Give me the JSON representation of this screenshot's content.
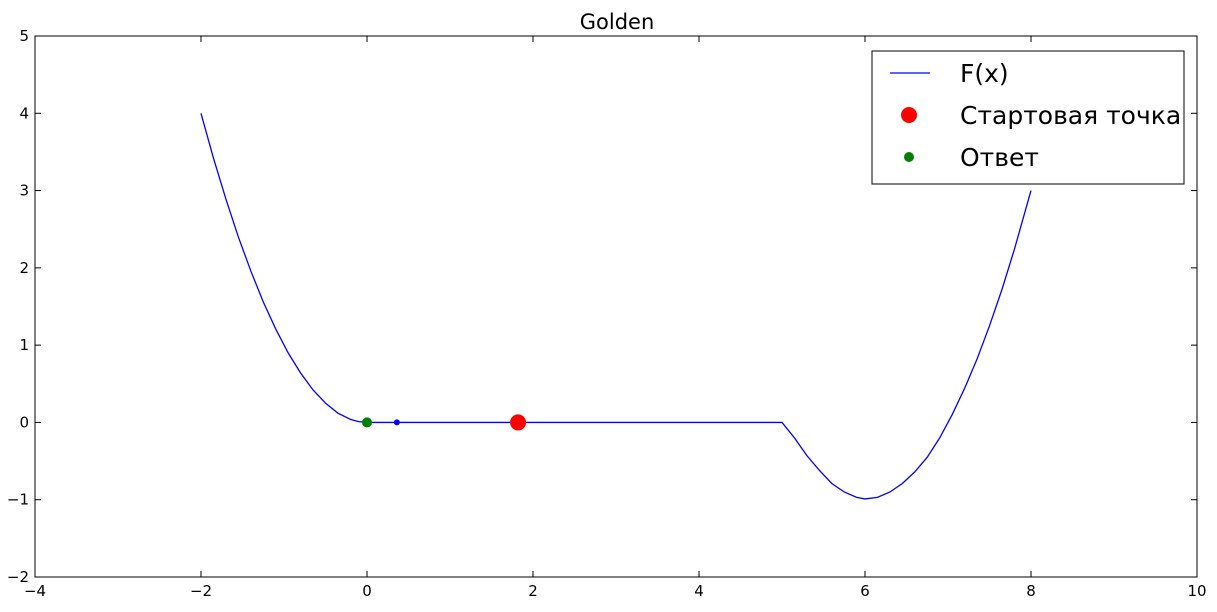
{
  "chart_data": {
    "type": "line",
    "title": "Golden",
    "xlabel": "",
    "ylabel": "",
    "xlim": [
      -4,
      10
    ],
    "ylim": [
      -2,
      5
    ],
    "xticks": [
      -4,
      -2,
      0,
      2,
      4,
      6,
      8,
      10
    ],
    "yticks": [
      -2,
      -1,
      0,
      1,
      2,
      3,
      4,
      5
    ],
    "xtick_labels": [
      "−4",
      "−2",
      "0",
      "2",
      "4",
      "6",
      "8",
      "10"
    ],
    "ytick_labels": [
      "−2",
      "−1",
      "0",
      "1",
      "2",
      "3",
      "4",
      "5"
    ],
    "grid": false,
    "legend_position": "top-right",
    "series": [
      {
        "name": "F(x)",
        "kind": "line",
        "color": "#0000ff",
        "x": [
          -2.0,
          -1.85,
          -1.7,
          -1.55,
          -1.4,
          -1.25,
          -1.1,
          -0.95,
          -0.8,
          -0.65,
          -0.5,
          -0.35,
          -0.2,
          -0.1,
          0.0,
          0.5,
          1.0,
          2.0,
          3.0,
          4.0,
          5.0,
          5.15,
          5.3,
          5.45,
          5.6,
          5.75,
          5.9,
          6.0,
          6.15,
          6.3,
          6.45,
          6.6,
          6.75,
          6.9,
          7.05,
          7.2,
          7.35,
          7.5,
          7.65,
          7.8,
          8.0
        ],
        "y": [
          4.0,
          3.42,
          2.89,
          2.4,
          1.96,
          1.56,
          1.21,
          0.9,
          0.64,
          0.42,
          0.25,
          0.12,
          0.04,
          0.01,
          0.0,
          0.0,
          0.0,
          0.0,
          0.0,
          0.0,
          0.0,
          -0.2,
          -0.43,
          -0.62,
          -0.79,
          -0.9,
          -0.97,
          -0.99,
          -0.97,
          -0.9,
          -0.79,
          -0.64,
          -0.45,
          -0.2,
          0.1,
          0.44,
          0.82,
          1.25,
          1.72,
          2.24,
          3.0
        ]
      },
      {
        "name": "Стартовая точка",
        "kind": "marker",
        "color": "#ff0000",
        "marker_size": 8,
        "x": [
          1.82
        ],
        "y": [
          0.0
        ]
      },
      {
        "name": "Ответ",
        "kind": "marker",
        "color": "#008000",
        "marker_size": 5,
        "x": [
          0.0
        ],
        "y": [
          0.0
        ]
      },
      {
        "kind": "marker",
        "color": "#0000ff",
        "marker_size": 3,
        "x": [
          0.36
        ],
        "y": [
          0.0
        ]
      }
    ]
  }
}
